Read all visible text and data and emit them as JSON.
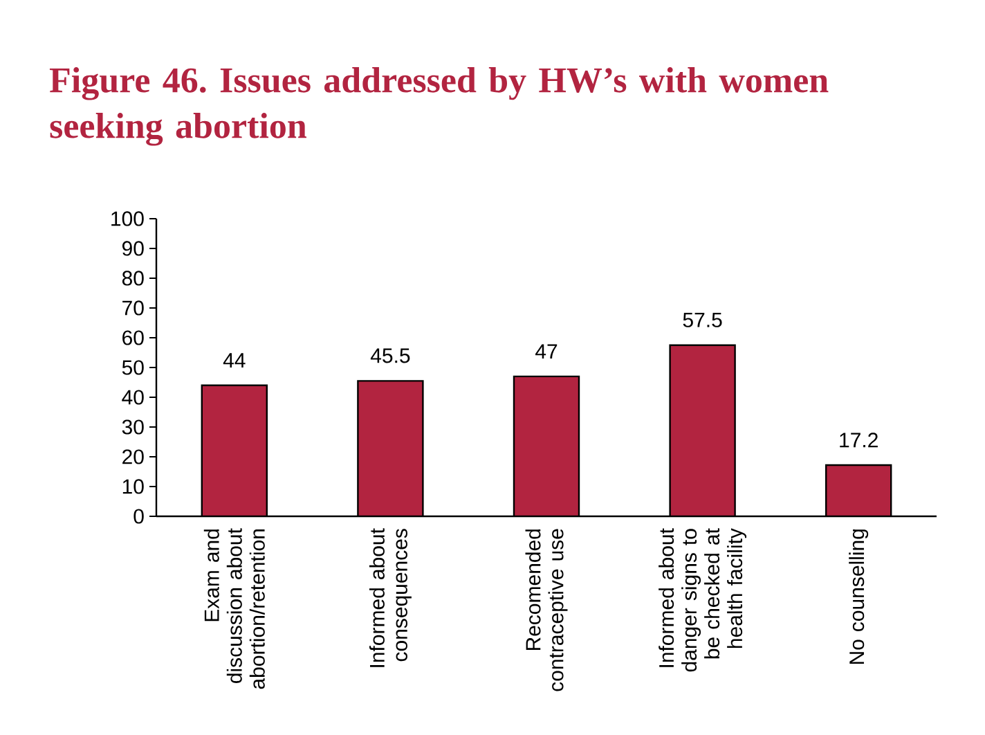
{
  "chart_data": {
    "type": "bar",
    "title": "Figure 46. Issues addressed by HW’s with women seeking abortion",
    "categories": [
      "Exam and discussion about abortion/retention",
      "Informed about consequences",
      "Recomended contraceptive use",
      "Informed about danger signs to be checked at health facility",
      "No counselling"
    ],
    "values": [
      44,
      45.5,
      47,
      57.5,
      17.2
    ],
    "color": "#b22440",
    "ylim": [
      0,
      100
    ],
    "yticks": [
      0,
      10,
      20,
      30,
      40,
      50,
      60,
      70,
      80,
      90,
      100
    ],
    "data_labels": true
  }
}
